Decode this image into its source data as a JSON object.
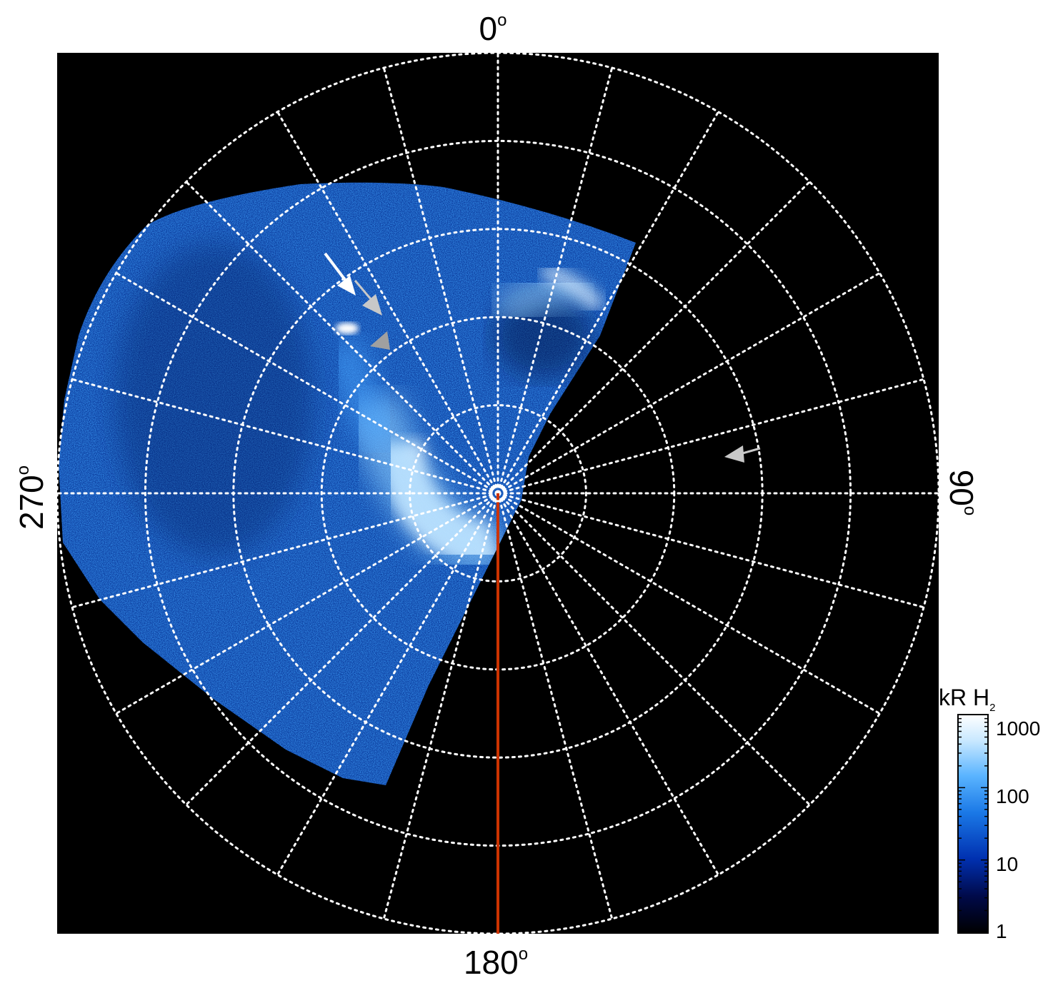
{
  "figure": {
    "azimuth_labels": {
      "top": "0",
      "right": "90",
      "bottom": "180",
      "left": "270",
      "degree_symbol": "o"
    },
    "colorbar": {
      "title_main": "kR H",
      "title_sub": "2",
      "ticks": [
        "1000",
        "100",
        "10",
        "1"
      ],
      "scale": "log",
      "range": [
        1,
        1000
      ],
      "colors": [
        "#000000",
        "#000a4a",
        "#0030b0",
        "#1a78e6",
        "#5ab4ff",
        "#c8e8ff",
        "#ffffff"
      ]
    },
    "grid": {
      "rings": 5,
      "spokes": 24,
      "style": "dotted",
      "color": "#ffffff"
    },
    "background_color": "#000000",
    "meridian_line_color": "#cc3300",
    "pole_marker_color": "#ffffff",
    "arrows": [
      {
        "color": "#ffffff",
        "icon": "arrow-icon"
      },
      {
        "color": "#c8c8c8",
        "icon": "arrow-icon"
      },
      {
        "color": "#a0a0a0",
        "icon": "arrowhead-icon"
      },
      {
        "color": "#c8c8c8",
        "icon": "arrow-icon"
      }
    ]
  }
}
